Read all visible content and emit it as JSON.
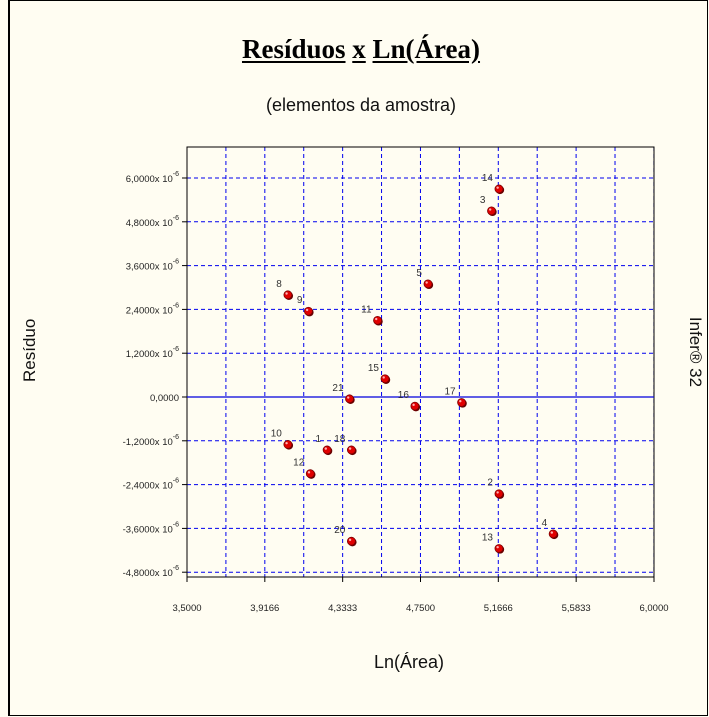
{
  "chart_data": {
    "type": "scatter",
    "title_parts": [
      "Resíduos",
      "x",
      "Ln(Área)"
    ],
    "subtitle": "(elementos da amostra)",
    "xlabel": "Ln(Área)",
    "ylabel": "Resíduo",
    "side_label": "Infer® 32",
    "xlim": [
      3.5,
      6.0
    ],
    "ylim": [
      -4.8e-06,
      6.6e-06
    ],
    "x_ticks": [
      3.5,
      3.9166,
      4.3333,
      4.75,
      5.1666,
      5.5833,
      6.0
    ],
    "x_tick_labels": [
      "3,5000",
      "3,9166",
      "4,3333",
      "4,7500",
      "5,1666",
      "5,5833",
      "6,0000"
    ],
    "y_ticks": [
      6e-06,
      4.8e-06,
      3.6e-06,
      2.4e-06,
      1.2e-06,
      0,
      -1.2e-06,
      -2.4e-06,
      -3.6e-06,
      -4.8e-06
    ],
    "y_tick_labels": [
      {
        "base": "6,0000",
        "mult": "x 10",
        "exp": "-6"
      },
      {
        "base": "4,8000",
        "mult": "x 10",
        "exp": "-6"
      },
      {
        "base": "3,6000",
        "mult": "x 10",
        "exp": "-6"
      },
      {
        "base": "2,4000",
        "mult": "x 10",
        "exp": "-6"
      },
      {
        "base": "1,2000",
        "mult": "x 10",
        "exp": "-6"
      },
      {
        "base": "0,0000",
        "mult": "",
        "exp": ""
      },
      {
        "base": "-1,2000",
        "mult": "x 10",
        "exp": "-6"
      },
      {
        "base": "-2,4000",
        "mult": "x 10",
        "exp": "-6"
      },
      {
        "base": "-3,6000",
        "mult": "x 10",
        "exp": "-6"
      },
      {
        "base": "-4,8000",
        "mult": "x 10",
        "exp": "-6"
      }
    ],
    "grid": true,
    "points": [
      {
        "label": "1",
        "x": 4.25,
        "y": -1.45e-06
      },
      {
        "label": "2",
        "x": 5.17,
        "y": -2.65e-06
      },
      {
        "label": "3",
        "x": 5.13,
        "y": 5.1e-06
      },
      {
        "label": "4",
        "x": 5.46,
        "y": -3.75e-06
      },
      {
        "label": "5",
        "x": 4.79,
        "y": 3.1e-06
      },
      {
        "label": "8",
        "x": 4.04,
        "y": 2.8e-06
      },
      {
        "label": "9",
        "x": 4.15,
        "y": 2.35e-06
      },
      {
        "label": "10",
        "x": 4.04,
        "y": -1.3e-06
      },
      {
        "label": "11",
        "x": 4.52,
        "y": 2.1e-06
      },
      {
        "label": "12",
        "x": 4.16,
        "y": -2.1e-06
      },
      {
        "label": "13",
        "x": 5.17,
        "y": -4.15e-06
      },
      {
        "label": "14",
        "x": 5.17,
        "y": 5.7e-06
      },
      {
        "label": "15",
        "x": 4.56,
        "y": 5e-07
      },
      {
        "label": "16",
        "x": 4.72,
        "y": -2.5e-07
      },
      {
        "label": "17",
        "x": 4.97,
        "y": -1.5e-07
      },
      {
        "label": "18",
        "x": 4.38,
        "y": -1.45e-06
      },
      {
        "label": "20",
        "x": 4.38,
        "y": -3.95e-06
      },
      {
        "label": "21",
        "x": 4.37,
        "y": -5e-08
      }
    ],
    "colors": {
      "grid": "#0000ee",
      "axis": "#0000dd",
      "point": "#e00000"
    }
  }
}
